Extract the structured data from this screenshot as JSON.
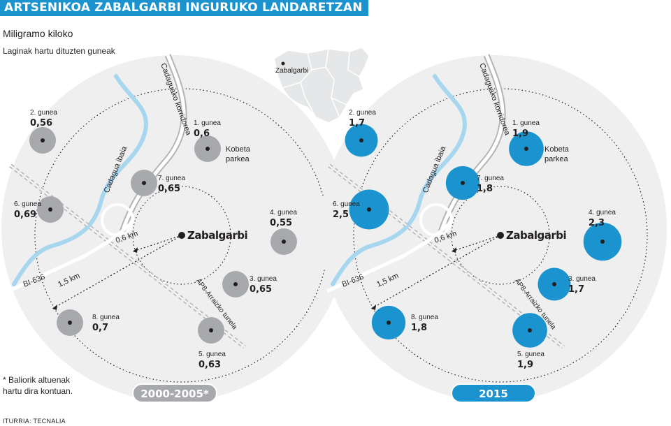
{
  "header": {
    "title": "ARTSENIKOA ZABALGARBI INGURUKO LANDARETZAN",
    "subtitle": "Miligramo kiloko",
    "legend": "Laginak hartu dituzten guneak"
  },
  "inset_label": "Zabalgarbi",
  "labels": {
    "center": "Zabalgarbi",
    "corridor": "Cadaguako korridorea",
    "river": "Cadagua ibaia",
    "tunnel": "AP8-Arraizko tunela",
    "road": "BI-636",
    "radius_inner": "0,6 km",
    "radius_outer": "1,5 km",
    "park_line1": "Kobeta",
    "park_line2": "parkea"
  },
  "footnote_line1": "* Baliorik altuenak",
  "footnote_line2": "hartu dira kontuan.",
  "source": "ITURRIA: TECNALIA",
  "colors": {
    "accent": "#1a93cf",
    "grey_marker": "#a7a9ac",
    "panel": "#efefef"
  },
  "chart_data": {
    "type": "map",
    "unit": "Miligramo kiloko",
    "periods": [
      {
        "label": "2000-2005*",
        "color": "#a7a9ac",
        "sites": [
          {
            "name": "1. gunea",
            "value": "0,6"
          },
          {
            "name": "2. gunea",
            "value": "0,56"
          },
          {
            "name": "3. gunea",
            "value": "0,65"
          },
          {
            "name": "4. gunea",
            "value": "0,55"
          },
          {
            "name": "5. gunea",
            "value": "0,63"
          },
          {
            "name": "6. gunea",
            "value": "0,69"
          },
          {
            "name": "7. gunea",
            "value": "0,65"
          },
          {
            "name": "8. gunea",
            "value": "0,7"
          }
        ]
      },
      {
        "label": "2015",
        "color": "#1a93cf",
        "sites": [
          {
            "name": "1. gunea",
            "value": "1,9"
          },
          {
            "name": "2. gunea",
            "value": "1,7"
          },
          {
            "name": "3. gunea",
            "value": "1,7"
          },
          {
            "name": "4. gunea",
            "value": "2,3"
          },
          {
            "name": "5. gunea",
            "value": "1,9"
          },
          {
            "name": "6. gunea",
            "value": "2,5"
          },
          {
            "name": "7. gunea",
            "value": "1,8"
          },
          {
            "name": "8. gunea",
            "value": "1,8"
          }
        ]
      }
    ]
  }
}
